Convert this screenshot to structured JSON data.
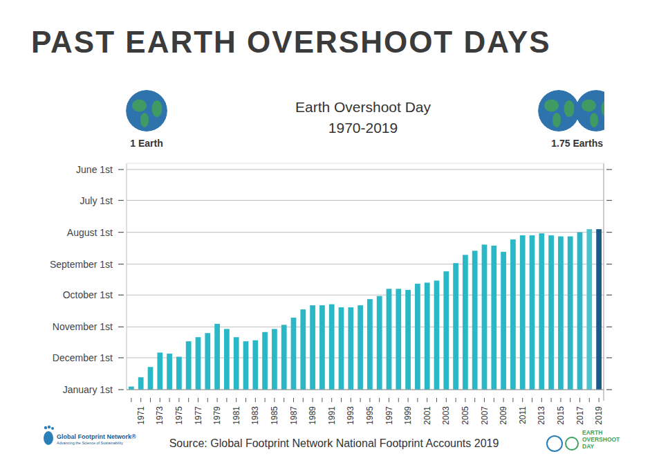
{
  "header": {
    "heading": "PAST EARTH OVERSHOOT DAYS"
  },
  "chart_data": {
    "type": "bar",
    "title": "Earth Overshoot Day",
    "subtitle": "1970-2019",
    "annotations": [
      "1 Earth",
      "1.75 Earths"
    ],
    "categories": [
      null,
      "1971",
      null,
      "1973",
      null,
      "1975",
      null,
      "1977",
      null,
      "1979",
      null,
      "1981",
      null,
      "1983",
      null,
      "1985",
      null,
      "1987",
      null,
      "1989",
      null,
      "1991",
      null,
      "1993",
      null,
      "1995",
      null,
      "1997",
      null,
      "1999",
      null,
      "2001",
      null,
      "2003",
      null,
      "2005",
      null,
      "2007",
      null,
      "2009",
      null,
      "2011",
      null,
      "2013",
      null,
      "2015",
      null,
      "2017",
      null,
      "2019"
    ],
    "values": [
      363,
      354,
      344,
      330,
      331,
      334,
      319,
      315,
      311,
      302,
      307,
      315,
      319,
      318,
      310,
      307,
      303,
      296,
      288,
      284,
      284,
      283,
      286,
      286,
      284,
      278,
      275,
      268,
      268,
      269,
      263,
      262,
      260,
      251,
      243,
      235,
      231,
      225,
      226,
      232,
      220,
      216,
      216,
      214,
      216,
      217,
      217,
      213,
      210,
      210
    ],
    "colors": [
      "#2ab7c6",
      "#2ab7c6",
      "#2ab7c6",
      "#2ab7c6",
      "#2ab7c6",
      "#2ab7c6",
      "#2ab7c6",
      "#2ab7c6",
      "#2ab7c6",
      "#2ab7c6",
      "#2ab7c6",
      "#2ab7c6",
      "#2ab7c6",
      "#2ab7c6",
      "#2ab7c6",
      "#2ab7c6",
      "#2ab7c6",
      "#2ab7c6",
      "#2ab7c6",
      "#2ab7c6",
      "#2ab7c6",
      "#2ab7c6",
      "#2ab7c6",
      "#2ab7c6",
      "#2ab7c6",
      "#2ab7c6",
      "#2ab7c6",
      "#2ab7c6",
      "#2ab7c6",
      "#2ab7c6",
      "#2ab7c6",
      "#2ab7c6",
      "#2ab7c6",
      "#2ab7c6",
      "#2ab7c6",
      "#2ab7c6",
      "#2ab7c6",
      "#2ab7c6",
      "#2ab7c6",
      "#2ab7c6",
      "#2ab7c6",
      "#2ab7c6",
      "#2ab7c6",
      "#2ab7c6",
      "#2ab7c6",
      "#2ab7c6",
      "#2ab7c6",
      "#2ab7c6",
      "#4cc3cf",
      "#1a5a8a"
    ],
    "ylim": [
      366,
      146
    ],
    "yticks": [
      {
        "value": 152,
        "label": "June 1st"
      },
      {
        "value": 182,
        "label": "July 1st"
      },
      {
        "value": 213,
        "label": "August 1st"
      },
      {
        "value": 244,
        "label": "September 1st"
      },
      {
        "value": 274,
        "label": "October 1st"
      },
      {
        "value": 305,
        "label": "November 1st"
      },
      {
        "value": 335,
        "label": "December 1st"
      },
      {
        "value": 366,
        "label": "January 1st"
      }
    ],
    "grid": true
  },
  "footer": {
    "source": "Source: Global Footprint Network National Footprint Accounts 2019",
    "logo_left": [
      "Global Footprint Network®",
      "Advancing the Science of Sustainability"
    ],
    "logo_right": "EARTH OVERSHOOT DAY"
  }
}
